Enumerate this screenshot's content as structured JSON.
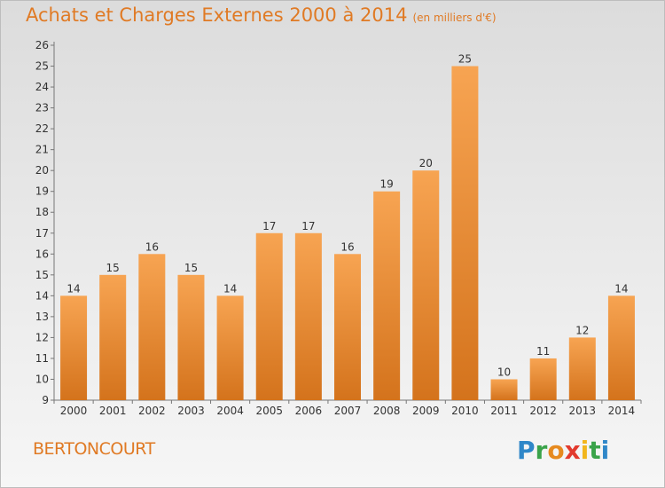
{
  "title": "Achats et Charges Externes 2000 à 2014",
  "subtitle": "(en milliers d'€)",
  "commune": "BERTONCOURT",
  "logo": "Proxiti",
  "colors": {
    "bar_top": "#f7a452",
    "bar_bottom": "#d4731c",
    "title": "#e07a24"
  },
  "chart_data": {
    "type": "bar",
    "categories": [
      "2000",
      "2001",
      "2002",
      "2003",
      "2004",
      "2005",
      "2006",
      "2007",
      "2008",
      "2009",
      "2010",
      "2011",
      "2012",
      "2013",
      "2014"
    ],
    "values": [
      14,
      15,
      16,
      15,
      14,
      17,
      17,
      16,
      19,
      20,
      25,
      10,
      11,
      12,
      14
    ],
    "ylim": [
      9,
      26
    ],
    "yticks": [
      9,
      10,
      11,
      12,
      13,
      14,
      15,
      16,
      17,
      18,
      19,
      20,
      21,
      22,
      23,
      24,
      25,
      26
    ],
    "grid": false,
    "title": "Achats et Charges Externes 2000 à 2014",
    "subtitle": "(en milliers d'€)"
  }
}
